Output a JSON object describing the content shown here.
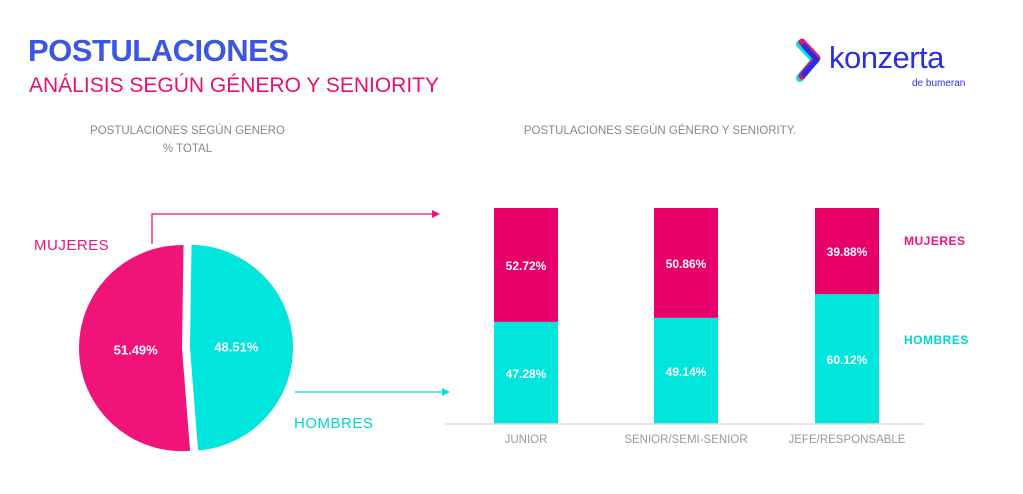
{
  "header": {
    "title": "POSTULACIONES",
    "subtitle": "ANÁLISIS SEGÚN GÉNERO Y SENIORITY",
    "logo_text": "konzerta",
    "logo_sub": "de bumeran"
  },
  "colors": {
    "mujeres": "#f0137a",
    "mujeres_bar": "#e8006a",
    "hombres": "#00e6dc",
    "title": "#3b55e6"
  },
  "chart_data": [
    {
      "type": "pie",
      "title": "POSTULACIONES  SEGÚN GENERO",
      "subtitle": "% TOTAL",
      "slices": [
        {
          "label": "MUJERES",
          "value": 51.49,
          "value_label": "51.49%"
        },
        {
          "label": "HOMBRES",
          "value": 48.51,
          "value_label": "48.51%"
        }
      ]
    },
    {
      "type": "bar",
      "stacked": true,
      "title": "POSTULACIONES  SEGÚN GÉNERO  Y SENIORITY.",
      "categories": [
        "JUNIOR",
        "SENIOR/SEMI-SENIOR",
        "JEFE/RESPONSABLE"
      ],
      "series": [
        {
          "name": "HOMBRES",
          "values": [
            47.28,
            49.14,
            60.12
          ],
          "labels": [
            "47.28%",
            "49.14%",
            "60.12%"
          ]
        },
        {
          "name": "MUJERES",
          "values": [
            52.72,
            50.86,
            39.88
          ],
          "labels": [
            "52.72%",
            "50.86%",
            "39.88%"
          ]
        }
      ],
      "ylim": [
        0,
        100
      ],
      "legend_position": "right"
    }
  ]
}
